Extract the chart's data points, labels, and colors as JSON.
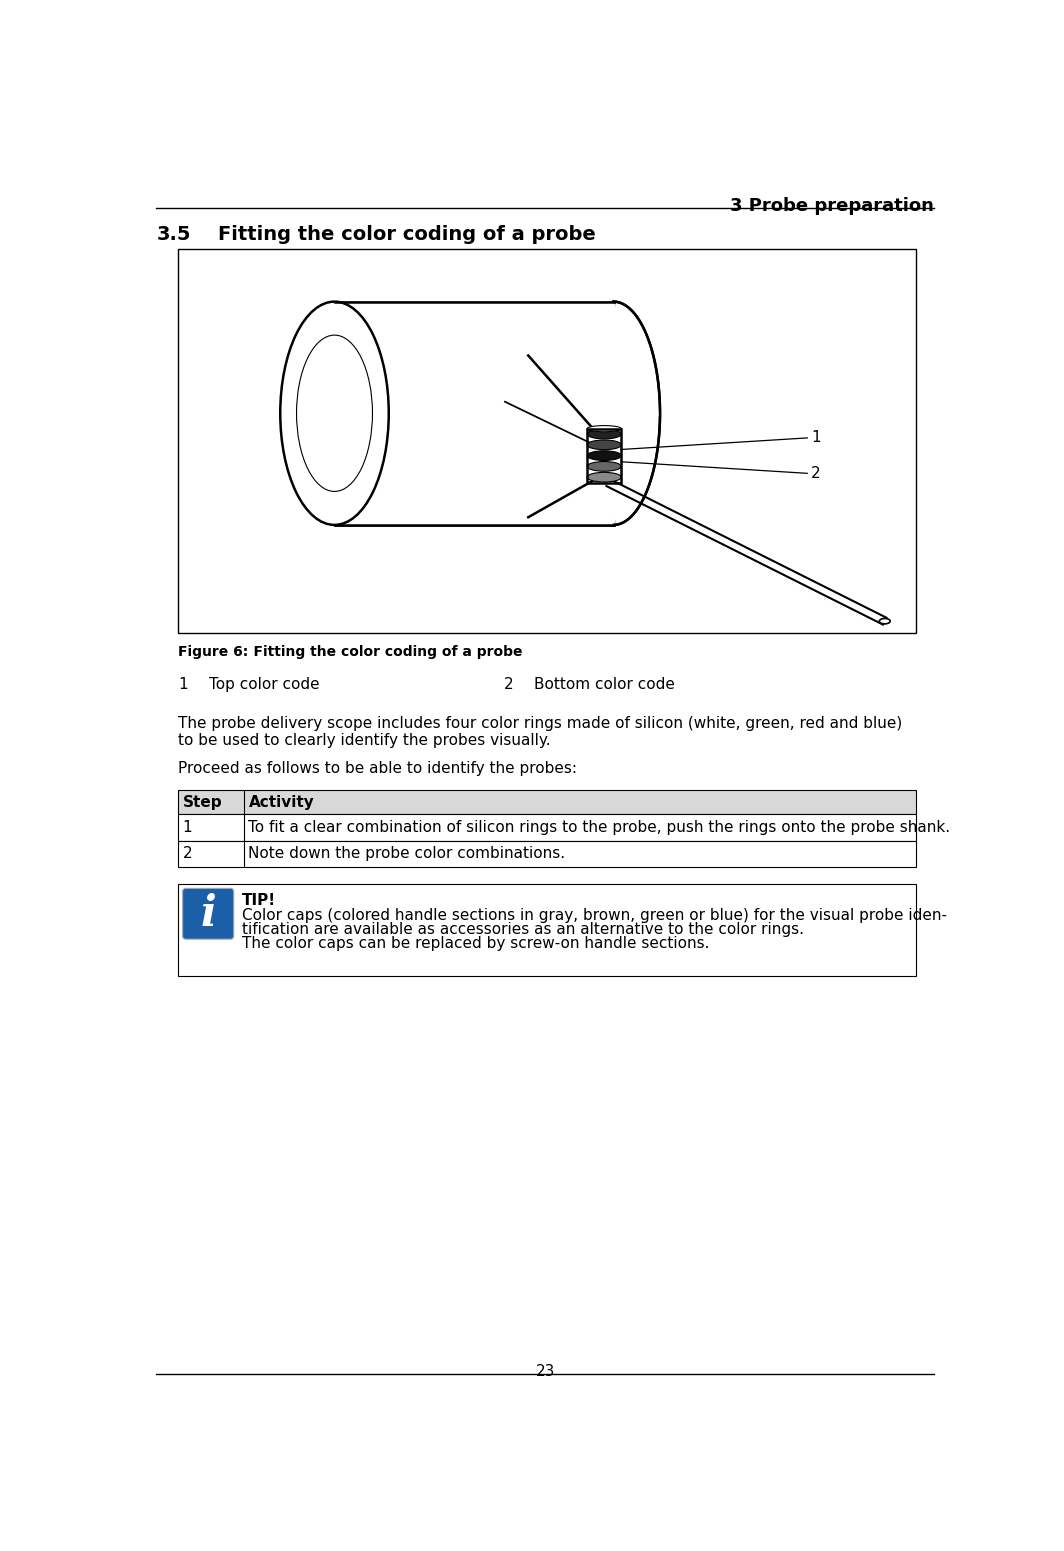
{
  "page_number": "23",
  "header_text": "3 Probe preparation",
  "section_number": "3.5",
  "section_title": "Fitting the color coding of a probe",
  "figure_caption_bold": "Figure 6:",
  "figure_caption_rest": "    Fitting the color coding of a probe",
  "legend_items": [
    {
      "num": "1",
      "label": "Top color code"
    },
    {
      "num": "2",
      "label": "Bottom color code"
    }
  ],
  "para1_line1": "The probe delivery scope includes four color rings made of silicon (white, green, red and blue)",
  "para1_line2": "to be used to clearly identify the probes visually.",
  "para2": "Proceed as follows to be able to identify the probes:",
  "table_header": [
    "Step",
    "Activity"
  ],
  "table_rows": [
    [
      "1",
      "To fit a clear combination of silicon rings to the probe, push the rings onto the probe shank."
    ],
    [
      "2",
      "Note down the probe color combinations."
    ]
  ],
  "tip_title": "TIP!",
  "tip_line1": "Color caps (colored handle sections in gray, brown, green or blue) for the visual probe iden-",
  "tip_line2": "tification are available as accessories as an alternative to the color rings.",
  "tip_line3": "The color caps can be replaced by screw-on handle sections.",
  "tip_icon_color": "#1a5fa8",
  "background_color": "#ffffff",
  "text_color": "#000000",
  "fig_box_bg": "#ffffff"
}
